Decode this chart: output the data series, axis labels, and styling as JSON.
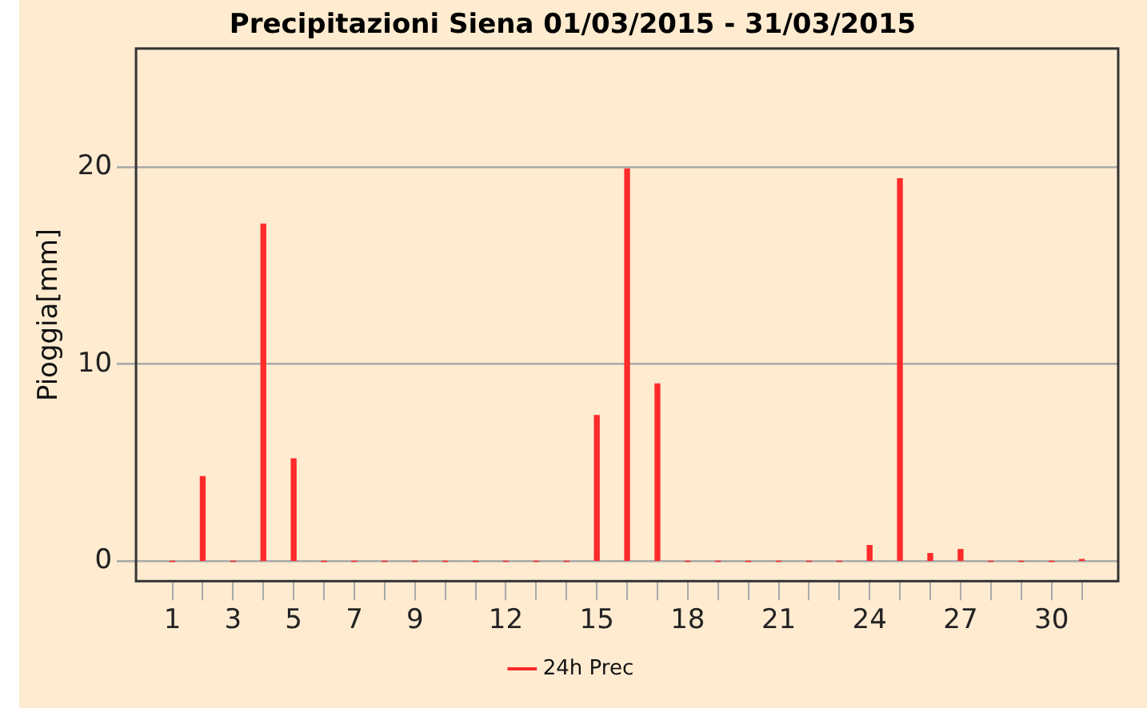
{
  "chart_data": {
    "type": "bar",
    "title": "Precipitazioni Siena 01/03/2015 - 31/03/2015",
    "ylabel": "Pioggia[mm]",
    "x": [
      1,
      2,
      3,
      4,
      5,
      6,
      7,
      8,
      9,
      10,
      11,
      12,
      13,
      14,
      15,
      16,
      17,
      18,
      19,
      20,
      21,
      22,
      23,
      24,
      25,
      26,
      27,
      28,
      29,
      30,
      31
    ],
    "series": [
      {
        "name": "24h Prec",
        "color": "#ff2a2a",
        "values": [
          0,
          4.3,
          0,
          17.1,
          5.2,
          0,
          0,
          0,
          0,
          0,
          0,
          0,
          0,
          0,
          7.4,
          19.9,
          9.0,
          0,
          0,
          0,
          0,
          0,
          0,
          0.8,
          19.4,
          0.4,
          0.6,
          0,
          0,
          0,
          0.1
        ]
      }
    ],
    "xlim": [
      -0.2,
      32.2
    ],
    "xticks": [
      1,
      {
        "value": 2,
        "label": null
      },
      3,
      {
        "value": 4,
        "label": null
      },
      5,
      {
        "value": 6,
        "label": null
      },
      7,
      {
        "value": 8,
        "label": null
      },
      9,
      {
        "value": 10,
        "label": null
      },
      {
        "value": 11,
        "label": null
      },
      12,
      {
        "value": 13,
        "label": null
      },
      {
        "value": 14,
        "label": null
      },
      15,
      {
        "value": 16,
        "label": null
      },
      {
        "value": 17,
        "label": null
      },
      18,
      {
        "value": 19,
        "label": null
      },
      {
        "value": 20,
        "label": null
      },
      21,
      {
        "value": 22,
        "label": null
      },
      {
        "value": 23,
        "label": null
      },
      24,
      {
        "value": 25,
        "label": null
      },
      {
        "value": 26,
        "label": null
      },
      27,
      {
        "value": 28,
        "label": null
      },
      {
        "value": 29,
        "label": null
      },
      30,
      {
        "value": 31,
        "label": null
      }
    ],
    "ylim": [
      -1,
      26
    ],
    "yticks": [
      0,
      10,
      20
    ],
    "grid": "y",
    "legend": "bottom"
  }
}
